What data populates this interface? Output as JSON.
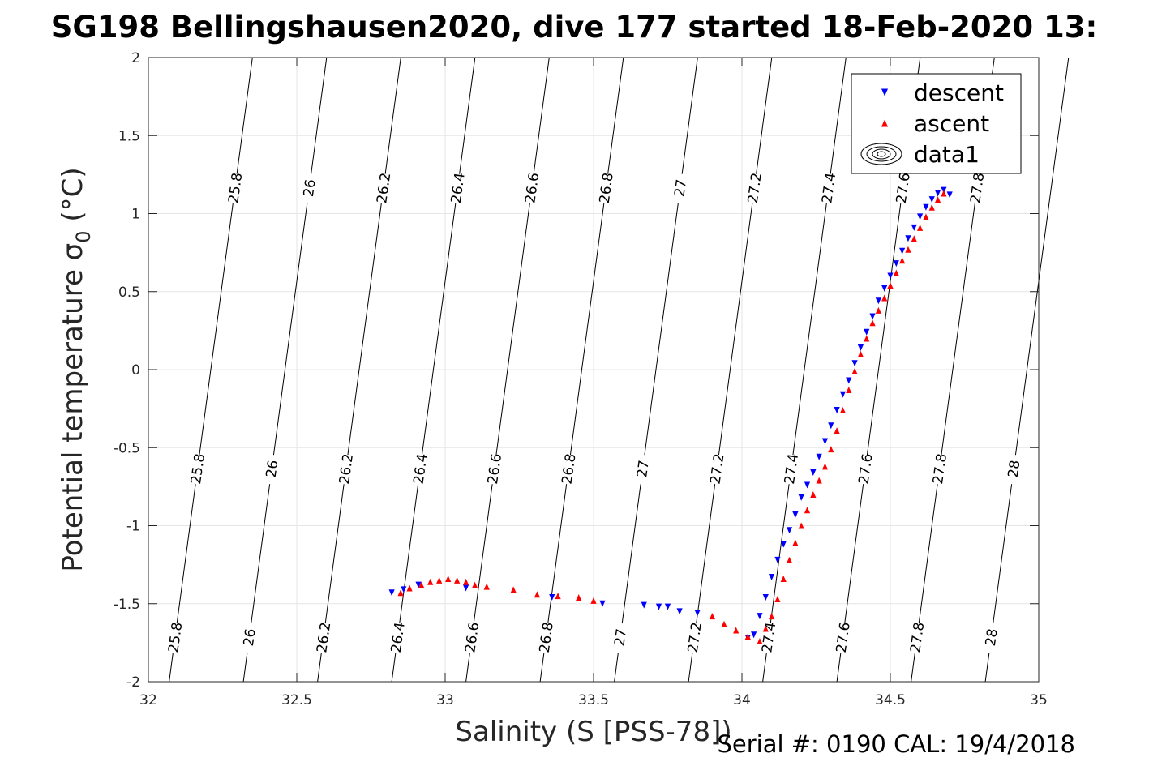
{
  "chart_data": {
    "type": "scatter",
    "title": "SG198 Bellingshausen2020, dive 177 started 18-Feb-2020 13:",
    "xlabel": "Salinity (S [PSS-78])",
    "ylabel": "Potential temperature σ",
    "ylabel_sub": "0",
    "ylabel_unit": " (°C)",
    "xlim": [
      32,
      35
    ],
    "ylim": [
      -2,
      2
    ],
    "x_ticks": [
      32,
      32.5,
      33,
      33.5,
      34,
      34.5,
      35
    ],
    "x_tick_labels": [
      "32",
      "32.5",
      "33",
      "33.5",
      "34",
      "34.5",
      "35"
    ],
    "y_ticks": [
      2,
      1.5,
      1,
      0.5,
      0,
      -0.5,
      -1,
      -1.5,
      -2
    ],
    "y_tick_labels": [
      "2",
      "1.5",
      "1",
      "0.5",
      "0",
      "-0.5",
      "-1",
      "-1.5",
      "-2"
    ],
    "grid": true,
    "legend_position": "top-right",
    "footer": "Serial #: 0190  CAL: 19/4/2018",
    "contours": {
      "color": "#000000",
      "levels": [
        {
          "label": "25.8",
          "top_x": 32.05,
          "bottom_x": 32.07
        },
        {
          "label": "26",
          "top_x": 32.3,
          "bottom_x": 32.32
        },
        {
          "label": "26.2",
          "top_x": 32.55,
          "bottom_x": 32.57
        },
        {
          "label": "26.4",
          "top_x": 32.8,
          "bottom_x": 32.82
        },
        {
          "label": "26.6",
          "top_x": 33.05,
          "bottom_x": 33.07
        },
        {
          "label": "26.8",
          "top_x": 33.3,
          "bottom_x": 33.32
        },
        {
          "label": "27",
          "top_x": 33.55,
          "bottom_x": 33.57
        },
        {
          "label": "27.2",
          "top_x": 33.8,
          "bottom_x": 33.82
        },
        {
          "label": "27.4",
          "top_x": 34.05,
          "bottom_x": 34.07
        },
        {
          "label": "27.6",
          "top_x": 34.3,
          "bottom_x": 34.32
        },
        {
          "label": "27.8",
          "top_x": 34.55,
          "bottom_x": 34.57
        },
        {
          "label": "28",
          "top_x": 34.8,
          "bottom_x": 34.82
        }
      ]
    },
    "series": [
      {
        "name": "descent",
        "color": "#0000ff",
        "marker": "triangle-down",
        "x": [
          32.82,
          32.86,
          32.91,
          33.07,
          33.36,
          33.53,
          33.67,
          33.72,
          33.75,
          33.79,
          33.85,
          34.02,
          34.04,
          34.06,
          34.08,
          34.1,
          34.12,
          34.14,
          34.16,
          34.18,
          34.2,
          34.22,
          34.24,
          34.26,
          34.28,
          34.3,
          34.32,
          34.34,
          34.36,
          34.38,
          34.4,
          34.42,
          34.44,
          34.46,
          34.48,
          34.5,
          34.52,
          34.54,
          34.56,
          34.58,
          34.6,
          34.62,
          34.64,
          34.66,
          34.68,
          34.7
        ],
        "y": [
          -1.43,
          -1.41,
          -1.38,
          -1.4,
          -1.46,
          -1.5,
          -1.51,
          -1.52,
          -1.52,
          -1.55,
          -1.56,
          -1.72,
          -1.7,
          -1.58,
          -1.46,
          -1.33,
          -1.22,
          -1.12,
          -1.03,
          -0.93,
          -0.82,
          -0.74,
          -0.66,
          -0.56,
          -0.46,
          -0.36,
          -0.26,
          -0.16,
          -0.07,
          0.04,
          0.14,
          0.24,
          0.34,
          0.44,
          0.52,
          0.6,
          0.68,
          0.76,
          0.84,
          0.91,
          0.98,
          1.04,
          1.09,
          1.13,
          1.15,
          1.12
        ]
      },
      {
        "name": "ascent",
        "color": "#ff0000",
        "marker": "triangle-up",
        "x": [
          32.85,
          32.88,
          32.92,
          32.95,
          32.98,
          33.01,
          33.04,
          33.07,
          33.1,
          33.14,
          33.23,
          33.31,
          33.38,
          33.45,
          33.5,
          33.9,
          33.94,
          33.98,
          34.02,
          34.06,
          34.08,
          34.1,
          34.12,
          34.14,
          34.16,
          34.18,
          34.2,
          34.22,
          34.24,
          34.26,
          34.28,
          34.3,
          34.32,
          34.34,
          34.36,
          34.38,
          34.4,
          34.42,
          34.44,
          34.46,
          34.48,
          34.5,
          34.52,
          34.54,
          34.56,
          34.58,
          34.6,
          34.62,
          34.64,
          34.66,
          34.68
        ],
        "y": [
          -1.43,
          -1.4,
          -1.38,
          -1.36,
          -1.35,
          -1.34,
          -1.35,
          -1.36,
          -1.38,
          -1.39,
          -1.41,
          -1.44,
          -1.45,
          -1.46,
          -1.48,
          -1.58,
          -1.63,
          -1.67,
          -1.71,
          -1.74,
          -1.66,
          -1.58,
          -1.47,
          -1.34,
          -1.22,
          -1.11,
          -1.0,
          -0.9,
          -0.8,
          -0.71,
          -0.62,
          -0.51,
          -0.39,
          -0.26,
          -0.13,
          -0.01,
          0.1,
          0.2,
          0.3,
          0.38,
          0.46,
          0.54,
          0.62,
          0.7,
          0.77,
          0.84,
          0.91,
          0.98,
          1.04,
          1.09,
          1.13
        ]
      }
    ],
    "legend": [
      {
        "name": "descent",
        "color": "#0000ff",
        "marker": "triangle-down"
      },
      {
        "name": "ascent",
        "color": "#ff0000",
        "marker": "triangle-up"
      },
      {
        "name": "data1",
        "color": "#000000",
        "marker": "contour"
      }
    ]
  }
}
